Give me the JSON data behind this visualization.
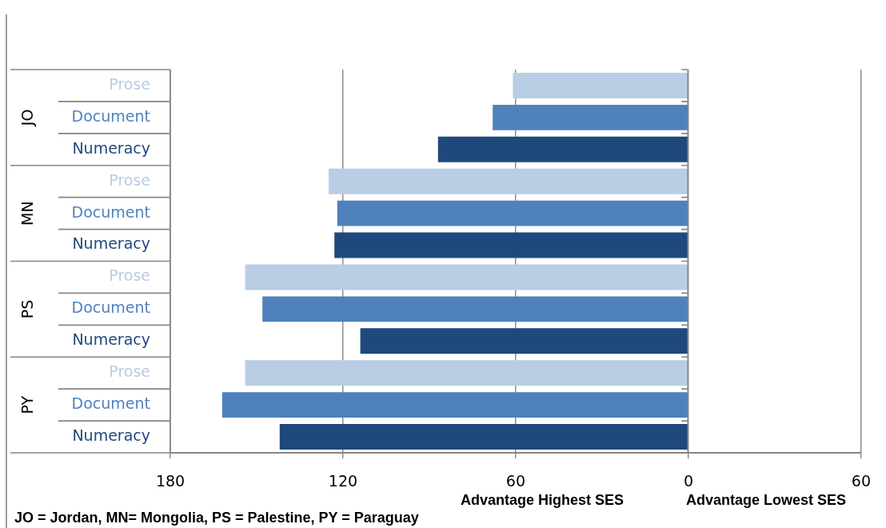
{
  "chart_data": {
    "type": "bar",
    "orientation": "horizontal",
    "categories": [
      "JO",
      "MN",
      "PS",
      "PY"
    ],
    "series": [
      {
        "name": "Prose",
        "color": "#b9cde5",
        "values": [
          61,
          125,
          154,
          154
        ]
      },
      {
        "name": "Document",
        "color": "#4f81bd",
        "values": [
          68,
          122,
          148,
          162
        ]
      },
      {
        "name": "Numeracy",
        "color": "#1f497d",
        "values": [
          87,
          123,
          114,
          142
        ]
      }
    ],
    "xlim": [
      180,
      -60
    ],
    "xticks": [
      180,
      120,
      60,
      0,
      {
        "value": -60,
        "label": "60"
      }
    ],
    "grid": "x",
    "annotations": [
      "Advantage Highest SES",
      "Advantage Lowest SES",
      "JO = Jordan, MN= Mongolia, PS = Palestine, PY = Paraguay"
    ]
  }
}
